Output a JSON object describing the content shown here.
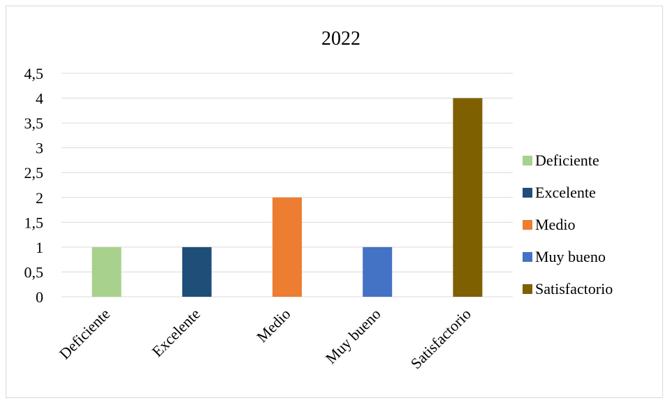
{
  "chart_data": {
    "type": "bar",
    "title": "2022",
    "categories": [
      "Deficiente",
      "Excelente",
      "Medio",
      "Muy bueno",
      "Satisfactorio"
    ],
    "values": [
      1,
      1,
      2,
      1,
      4
    ],
    "colors": [
      "#a9d18e",
      "#1f4e79",
      "#ed7d31",
      "#4472c4",
      "#7f6000"
    ],
    "y_ticks": [
      "0",
      "0,5",
      "1",
      "1,5",
      "2",
      "2,5",
      "3",
      "3,5",
      "4",
      "4,5"
    ],
    "ylim": [
      0,
      4.5
    ],
    "grid": true,
    "legend": {
      "position": "right",
      "entries": [
        "Deficiente",
        "Excelente",
        "Medio",
        "Muy bueno",
        "Satisfactorio"
      ]
    },
    "xlabel": "",
    "ylabel": ""
  }
}
